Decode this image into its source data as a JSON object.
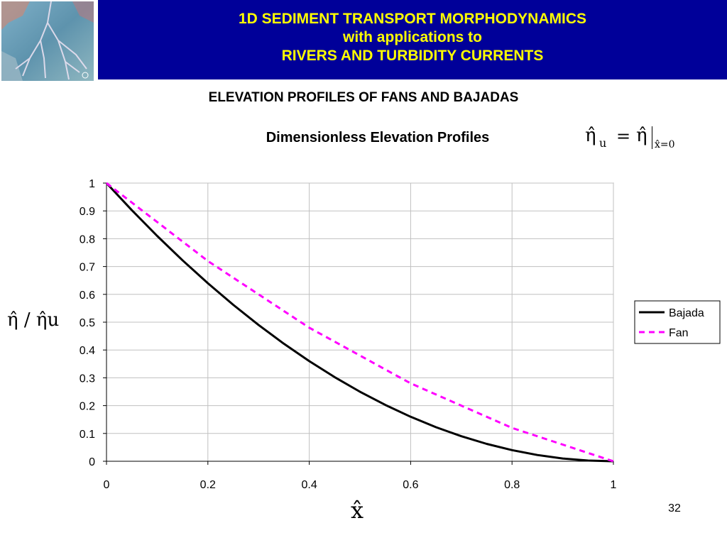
{
  "header": {
    "line1": "1D SEDIMENT TRANSPORT MORPHODYNAMICS",
    "line2": "with applications to",
    "line3": "RIVERS AND TURBIDITY CURRENTS"
  },
  "slide_title": "ELEVATION PROFILES OF FANS AND BAJADAS",
  "formula": {
    "lhs": "η̂",
    "lhs_sub": "u",
    "equals": "=",
    "rhs": "η̂",
    "eval_sub": "x̂=0"
  },
  "page_number": "32",
  "colors": {
    "header_bg": "#000099",
    "header_text": "#ffff00",
    "bajada": "#000000",
    "fan": "#ff00ff",
    "plot_bg": "#ffffff",
    "grid": "#c0c0c0"
  },
  "chart_data": {
    "type": "line",
    "title": "Dimensionless Elevation Profiles",
    "xlabel": "x̂",
    "ylabel": "η̂ / η̂u",
    "xlim": [
      0,
      1
    ],
    "ylim": [
      0,
      1
    ],
    "x_ticks": [
      "0",
      "0.2",
      "0.4",
      "0.6",
      "0.8",
      "1"
    ],
    "y_ticks": [
      "0",
      "0.1",
      "0.2",
      "0.3",
      "0.4",
      "0.5",
      "0.6",
      "0.7",
      "0.8",
      "0.9",
      "1"
    ],
    "grid": true,
    "legend_position": "right",
    "series": [
      {
        "name": "Bajada",
        "style": "solid",
        "color": "#000000",
        "x": [
          0,
          0.05,
          0.1,
          0.15,
          0.2,
          0.25,
          0.3,
          0.35,
          0.4,
          0.45,
          0.5,
          0.55,
          0.6,
          0.65,
          0.7,
          0.75,
          0.8,
          0.85,
          0.9,
          0.95,
          1
        ],
        "y": [
          1,
          0.9025,
          0.81,
          0.7225,
          0.64,
          0.5625,
          0.49,
          0.4225,
          0.36,
          0.3025,
          0.25,
          0.2025,
          0.16,
          0.1225,
          0.09,
          0.0625,
          0.04,
          0.0225,
          0.01,
          0.0025,
          0
        ]
      },
      {
        "name": "Fan",
        "style": "dashed",
        "color": "#ff00ff",
        "x": [
          0,
          0.2,
          0.4,
          0.6,
          0.8,
          1
        ],
        "y": [
          1,
          0.72,
          0.48,
          0.28,
          0.12,
          0
        ]
      }
    ]
  }
}
